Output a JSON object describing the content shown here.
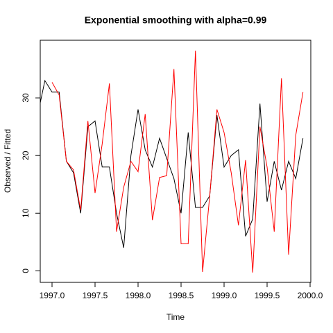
{
  "chart_data": {
    "type": "line",
    "title": "Exponential smoothing with alpha=0.99",
    "xlabel": "Time",
    "ylabel": "Observed / Fitted",
    "xlim": [
      1996.863,
      2000.008
    ],
    "ylim": [
      -2,
      40
    ],
    "xticks": [
      {
        "value": 1997,
        "label": "1997.0"
      },
      {
        "value": 1997.5,
        "label": "1997.5"
      },
      {
        "value": 1998,
        "label": "1998.0"
      },
      {
        "value": 1998.5,
        "label": "1998.5"
      },
      {
        "value": 1999,
        "label": "1999.0"
      },
      {
        "value": 1999.5,
        "label": "1999.5"
      },
      {
        "value": 2000,
        "label": "2000.0"
      }
    ],
    "yticks": [
      0,
      10,
      20,
      30
    ],
    "series": [
      {
        "color": "#000000",
        "x": [
          1996.833,
          1996.917,
          1997.0,
          1997.083,
          1997.167,
          1997.25,
          1997.333,
          1997.417,
          1997.5,
          1997.583,
          1997.667,
          1997.75,
          1997.833,
          1997.917,
          1998.0,
          1998.083,
          1998.167,
          1998.25,
          1998.333,
          1998.417,
          1998.5,
          1998.583,
          1998.667,
          1998.75,
          1998.833,
          1998.917,
          1999.0,
          1999.083,
          1999.167,
          1999.25,
          1999.333,
          1999.417,
          1999.5,
          1999.583,
          1999.667,
          1999.75,
          1999.833,
          1999.917
        ],
        "values": [
          27,
          33,
          31,
          31,
          19,
          17,
          10,
          25,
          26,
          18,
          18,
          10,
          4,
          20,
          28,
          21,
          18,
          23,
          19.5,
          16,
          10,
          24,
          11,
          11,
          13,
          27,
          18,
          20,
          21,
          6,
          9,
          29,
          12,
          19,
          14,
          19,
          16,
          23
        ]
      },
      {
        "color": "#ff0000",
        "x": [
          1997.0,
          1997.083,
          1997.167,
          1997.25,
          1997.333,
          1997.417,
          1997.5,
          1997.583,
          1997.667,
          1997.75,
          1997.833,
          1997.917,
          1998.0,
          1998.083,
          1998.167,
          1998.25,
          1998.333,
          1998.417,
          1998.5,
          1998.583,
          1998.667,
          1998.75,
          1998.833,
          1998.917,
          1999.0,
          1999.083,
          1999.167,
          1999.25,
          1999.333,
          1999.417,
          1999.5,
          1999.583,
          1999.667,
          1999.75,
          1999.833,
          1999.917
        ],
        "values": [
          32.7,
          30.5,
          19,
          17.5,
          10.5,
          26,
          13.5,
          22,
          32.5,
          6.8,
          14.5,
          19,
          17.2,
          27.2,
          8.8,
          16.2,
          16.5,
          35,
          4.7,
          4.7,
          38.2,
          -0.2,
          13,
          28,
          24,
          17,
          7.9,
          19.2,
          -0.3,
          25,
          18,
          6.8,
          33.4,
          2.8,
          23.5,
          31
        ]
      }
    ]
  }
}
